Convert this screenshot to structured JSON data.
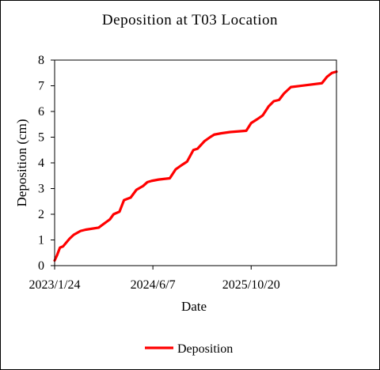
{
  "chart_data": {
    "type": "line",
    "title": "Deposition at T03 Location",
    "xlabel": "Date",
    "ylabel": "Deposition (cm)",
    "x_tick_labels": [
      "2023/1/24",
      "2024/6/7",
      "2025/10/20"
    ],
    "x_tick_dates": [
      "2023-01-24",
      "2024-06-07",
      "2025-10-20"
    ],
    "xlim": [
      "2023-01-24",
      "2026-12-28"
    ],
    "ylim": [
      0,
      8
    ],
    "y_ticks": [
      0,
      1,
      2,
      3,
      4,
      5,
      6,
      7,
      8
    ],
    "grid": false,
    "legend_position": "bottom",
    "series": [
      {
        "name": "Deposition",
        "color": "#ff0000",
        "x": [
          "2023-01-24",
          "2023-02-05",
          "2023-02-20",
          "2023-03-08",
          "2023-04-10",
          "2023-05-01",
          "2023-06-05",
          "2023-07-01",
          "2023-09-05",
          "2023-11-01",
          "2023-11-20",
          "2023-12-20",
          "2024-01-12",
          "2024-02-15",
          "2024-03-15",
          "2024-04-18",
          "2024-05-10",
          "2024-06-01",
          "2024-07-06",
          "2024-09-01",
          "2024-10-01",
          "2024-10-29",
          "2024-11-28",
          "2024-12-30",
          "2025-01-20",
          "2025-02-25",
          "2025-03-25",
          "2025-04-15",
          "2025-05-20",
          "2025-07-05",
          "2025-09-25",
          "2025-10-20",
          "2025-11-20",
          "2025-12-18",
          "2026-01-17",
          "2026-02-12",
          "2026-03-11",
          "2026-04-05",
          "2026-05-10",
          "2026-10-15",
          "2026-11-10",
          "2026-12-05",
          "2026-12-28"
        ],
        "values": [
          0.2,
          0.4,
          0.7,
          0.75,
          1.05,
          1.2,
          1.35,
          1.4,
          1.48,
          1.8,
          2.0,
          2.1,
          2.55,
          2.65,
          2.95,
          3.1,
          3.25,
          3.3,
          3.35,
          3.4,
          3.75,
          3.9,
          4.05,
          4.5,
          4.55,
          4.85,
          5.0,
          5.1,
          5.15,
          5.2,
          5.25,
          5.55,
          5.7,
          5.85,
          6.2,
          6.4,
          6.45,
          6.7,
          6.95,
          7.1,
          7.35,
          7.5,
          7.55
        ]
      }
    ]
  }
}
